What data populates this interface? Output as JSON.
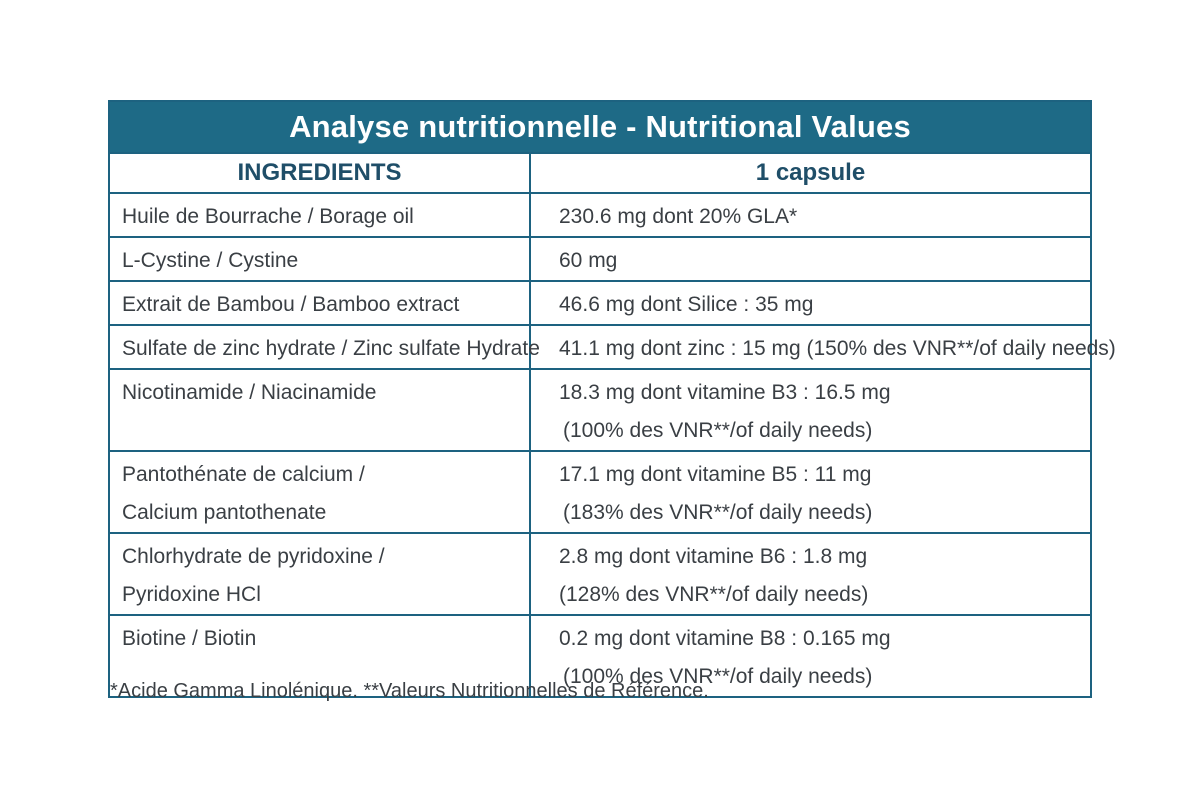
{
  "title": "Analyse nutritionnelle - Nutritional Values",
  "headers": {
    "ingredients": "INGREDIENTS",
    "serving": "1 capsule"
  },
  "rows": [
    {
      "ingredient": [
        "Huile de Bourrache / Borage oil"
      ],
      "value": [
        "230.6 mg dont 20% GLA*"
      ]
    },
    {
      "ingredient": [
        "L-Cystine / Cystine"
      ],
      "value": [
        "60 mg"
      ]
    },
    {
      "ingredient": [
        "Extrait de Bambou / Bamboo extract"
      ],
      "value": [
        "46.6 mg dont Silice : 35 mg"
      ]
    },
    {
      "ingredient": [
        "Sulfate de zinc hydrate / Zinc sulfate Hydrate"
      ],
      "value": [
        "41.1 mg dont zinc : 15 mg (150% des VNR**/of daily needs)"
      ]
    },
    {
      "ingredient": [
        "Nicotinamide / Niacinamide"
      ],
      "value": [
        "18.3 mg dont vitamine B3 : 16.5 mg",
        "(100% des VNR**/of daily needs)"
      ]
    },
    {
      "ingredient": [
        "Pantothénate de calcium /",
        "Calcium pantothenate"
      ],
      "value": [
        "17.1 mg dont vitamine B5 : 11 mg",
        "(183% des VNR**/of daily needs)"
      ]
    },
    {
      "ingredient": [
        "Chlorhydrate de pyridoxine /",
        "Pyridoxine HCl"
      ],
      "value": [
        "2.8 mg dont vitamine B6 : 1.8 mg",
        "(128% des VNR**/of daily needs)"
      ]
    },
    {
      "ingredient": [
        "Biotine / Biotin"
      ],
      "value": [
        "0.2 mg dont vitamine B8 : 0.165 mg",
        "(100% des VNR**/of daily needs)"
      ]
    }
  ],
  "footnote": "*Acide Gamma Linolénique. **Valeurs Nutritionnelles de Référence.",
  "colors": {
    "header_bg": "#1e6a86",
    "border": "#1d6280",
    "header_text": "#1f4e68"
  }
}
